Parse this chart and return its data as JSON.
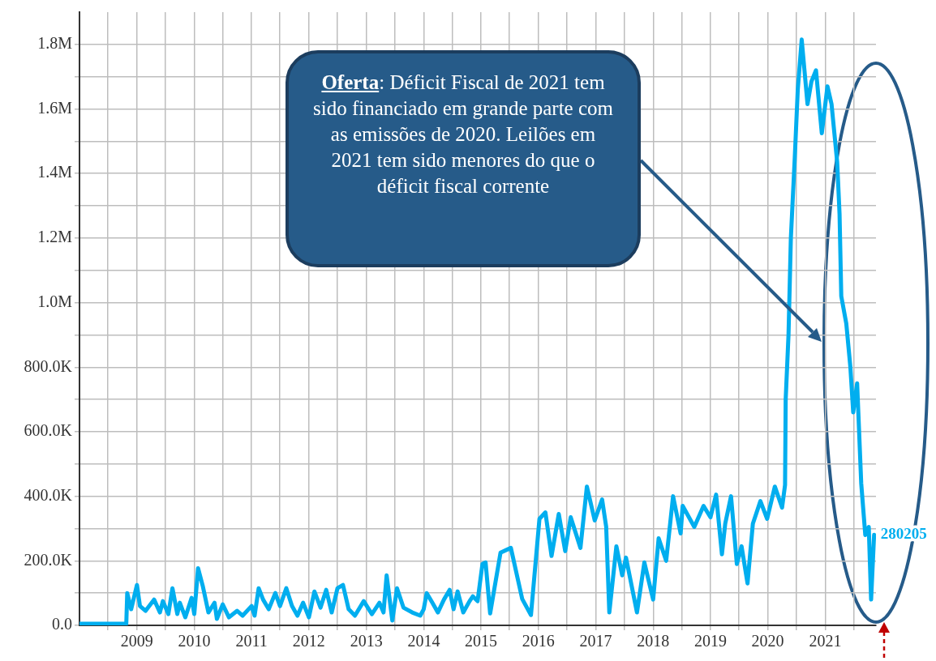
{
  "chart_data": {
    "type": "line",
    "x": [
      "2008-01-01",
      "2008-10-25",
      "2008-10-31",
      "2008-11-25",
      "2009-01-01",
      "2009-01-20",
      "2009-02-25",
      "2009-04-20",
      "2009-05-27",
      "2009-06-15",
      "2009-07-20",
      "2009-08-15",
      "2009-09-15",
      "2009-10-01",
      "2009-11-05",
      "2009-12-15",
      "2010-01-01",
      "2010-01-25",
      "2010-02-25",
      "2010-04-01",
      "2010-05-10",
      "2010-05-25",
      "2010-07-01",
      "2010-08-10",
      "2010-10-01",
      "2010-11-05",
      "2011-01-01",
      "2011-01-20",
      "2011-02-15",
      "2011-03-15",
      "2011-04-20",
      "2011-06-01",
      "2011-07-01",
      "2011-08-10",
      "2011-09-15",
      "2011-10-20",
      "2011-11-25",
      "2012-01-01",
      "2012-02-05",
      "2012-03-15",
      "2012-04-20",
      "2012-05-25",
      "2012-07-01",
      "2012-08-05",
      "2012-09-10",
      "2012-10-20",
      "2012-12-15",
      "2013-02-05",
      "2013-03-25",
      "2013-04-20",
      "2013-05-10",
      "2013-06-15",
      "2013-07-15",
      "2013-08-25",
      "2013-10-20",
      "2013-12-10",
      "2014-01-01",
      "2014-01-20",
      "2014-02-25",
      "2014-04-01",
      "2014-05-10",
      "2014-06-15",
      "2014-07-10",
      "2014-08-05",
      "2014-09-10",
      "2014-10-20",
      "2014-11-10",
      "2014-12-10",
      "2015-01-10",
      "2015-01-30",
      "2015-02-28",
      "2015-05-05",
      "2015-07-10",
      "2015-09-20",
      "2015-11-15",
      "2016-01-08",
      "2016-02-15",
      "2016-03-25",
      "2016-05-10",
      "2016-06-20",
      "2016-07-25",
      "2016-09-25",
      "2016-11-05",
      "2016-12-25",
      "2017-02-10",
      "2017-03-08",
      "2017-03-28",
      "2017-05-12",
      "2017-06-18",
      "2017-07-12",
      "2017-09-20",
      "2017-11-06",
      "2018-01-01",
      "2018-02-05",
      "2018-03-25",
      "2018-05-08",
      "2018-06-25",
      "2018-07-08",
      "2018-09-20",
      "2018-11-18",
      "2019-01-01",
      "2019-02-06",
      "2019-03-15",
      "2019-04-05",
      "2019-05-12",
      "2019-06-18",
      "2019-07-18",
      "2019-08-25",
      "2019-09-28",
      "2019-11-15",
      "2019-12-28",
      "2020-02-15",
      "2020-04-01",
      "2020-04-20",
      "2020-04-24",
      "2020-05-12",
      "2020-05-27",
      "2020-06-21",
      "2020-07-10",
      "2020-08-04",
      "2020-09-10",
      "2020-10-05",
      "2020-11-03",
      "2020-12-10",
      "2021-01-15",
      "2021-02-10",
      "2021-03-18",
      "2021-04-02",
      "2021-04-13",
      "2021-05-15",
      "2021-06-10",
      "2021-06-28",
      "2021-07-23",
      "2021-08-18",
      "2021-09-13",
      "2021-10-05",
      "2021-10-20",
      "2021-11-08"
    ],
    "series": [
      {
        "color": "#00aeef",
        "values": [
          5000,
          5000,
          100000,
          50000,
          125000,
          60000,
          45000,
          80000,
          40000,
          75000,
          35000,
          115000,
          35000,
          70000,
          25000,
          85000,
          35000,
          177000,
          120000,
          40000,
          70000,
          20000,
          65000,
          25000,
          45000,
          30000,
          60000,
          30000,
          115000,
          80000,
          50000,
          100000,
          60000,
          115000,
          60000,
          30000,
          70000,
          25000,
          105000,
          55000,
          110000,
          40000,
          115000,
          125000,
          50000,
          30000,
          75000,
          35000,
          70000,
          40000,
          155000,
          15000,
          115000,
          55000,
          40000,
          30000,
          50000,
          100000,
          70000,
          40000,
          80000,
          110000,
          50000,
          105000,
          40000,
          75000,
          90000,
          75000,
          190000,
          195000,
          37000,
          225000,
          240000,
          82000,
          32000,
          330000,
          350000,
          215000,
          345000,
          230000,
          335000,
          240000,
          430000,
          325000,
          390000,
          305000,
          40000,
          245000,
          155000,
          210000,
          40000,
          195000,
          80000,
          270000,
          200000,
          400000,
          285000,
          370000,
          305000,
          370000,
          335000,
          405000,
          220000,
          315000,
          400000,
          190000,
          245000,
          130000,
          315000,
          385000,
          330000,
          430000,
          365000,
          435000,
          700000,
          900000,
          1200000,
          1450000,
          1660000,
          1815000,
          1615000,
          1685000,
          1720000,
          1525000,
          1670000,
          1615000,
          1435000,
          1275000,
          1020000,
          935000,
          800000,
          660000,
          750000,
          440000,
          280000,
          305000,
          80000,
          280205
        ]
      }
    ],
    "xlim": [
      "2008-01-01",
      "2021-11-20"
    ],
    "xticks": [
      {
        "value": "2008-07-01",
        "label": null
      },
      {
        "value": "2009-01-01",
        "label": "2009"
      },
      {
        "value": "2009-07-01",
        "label": null
      },
      {
        "value": "2010-01-01",
        "label": "2010"
      },
      {
        "value": "2010-07-01",
        "label": null
      },
      {
        "value": "2011-01-01",
        "label": "2011"
      },
      {
        "value": "2011-07-01",
        "label": null
      },
      {
        "value": "2012-01-01",
        "label": "2012"
      },
      {
        "value": "2012-07-01",
        "label": null
      },
      {
        "value": "2013-01-01",
        "label": "2013"
      },
      {
        "value": "2013-07-01",
        "label": null
      },
      {
        "value": "2014-01-01",
        "label": "2014"
      },
      {
        "value": "2014-07-01",
        "label": null
      },
      {
        "value": "2015-01-01",
        "label": "2015"
      },
      {
        "value": "2015-07-01",
        "label": null
      },
      {
        "value": "2016-01-01",
        "label": "2016"
      },
      {
        "value": "2016-07-01",
        "label": null
      },
      {
        "value": "2017-01-01",
        "label": "2017"
      },
      {
        "value": "2017-07-01",
        "label": null
      },
      {
        "value": "2018-01-01",
        "label": "2018"
      },
      {
        "value": "2018-07-01",
        "label": null
      },
      {
        "value": "2019-01-01",
        "label": "2019"
      },
      {
        "value": "2019-07-01",
        "label": null
      },
      {
        "value": "2020-01-01",
        "label": "2020"
      },
      {
        "value": "2020-07-01",
        "label": null
      },
      {
        "value": "2021-01-01",
        "label": "2021"
      },
      {
        "value": "2021-07-01",
        "label": null
      }
    ],
    "ylim": [
      0,
      1900000
    ],
    "yticks": [
      {
        "value": 0,
        "label": "0.0"
      },
      {
        "value": 100000,
        "label": null
      },
      {
        "value": 200000,
        "label": "200.0K"
      },
      {
        "value": 300000,
        "label": null
      },
      {
        "value": 400000,
        "label": "400.0K"
      },
      {
        "value": 500000,
        "label": null
      },
      {
        "value": 600000,
        "label": "600.0K"
      },
      {
        "value": 700000,
        "label": null
      },
      {
        "value": 800000,
        "label": "800.0K"
      },
      {
        "value": 900000,
        "label": null
      },
      {
        "value": 1000000,
        "label": "1.0M"
      },
      {
        "value": 1100000,
        "label": null
      },
      {
        "value": 1200000,
        "label": "1.2M"
      },
      {
        "value": 1300000,
        "label": null
      },
      {
        "value": 1400000,
        "label": "1.4M"
      },
      {
        "value": 1500000,
        "label": null
      },
      {
        "value": 1600000,
        "label": "1.6M"
      },
      {
        "value": 1700000,
        "label": null
      },
      {
        "value": 1800000,
        "label": "1.8M"
      }
    ],
    "grid": true,
    "legend": false,
    "marker": "none",
    "line_style": "solid",
    "annotations": [
      "Oferta: Déficit Fiscal de 2021 tem sido financiado em grande parte com as emissões de 2020. Leilões em 2021 tem sido menores do que o déficit fiscal corrente",
      {
        "text": "280205",
        "x": "2021-11-08",
        "y": 280205
      }
    ]
  }
}
